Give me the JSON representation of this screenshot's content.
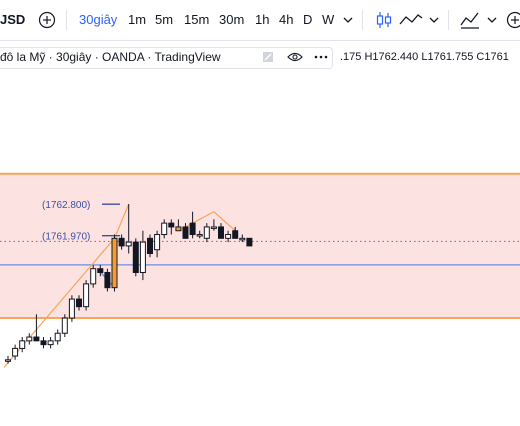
{
  "toolbar": {
    "symbol": "JSD",
    "intervals": [
      {
        "label": "30giây",
        "active": true
      },
      {
        "label": "1m"
      },
      {
        "label": "5m"
      },
      {
        "label": "15m"
      },
      {
        "label": "30m"
      },
      {
        "label": "1h"
      },
      {
        "label": "4h"
      },
      {
        "label": "D"
      },
      {
        "label": "W"
      }
    ],
    "icons": {
      "add": "plus-circle-icon",
      "interval_menu": "chevron-down-icon",
      "candles": "candlestick-icon",
      "line": "line-chart-icon",
      "indicators": "indicators-icon"
    }
  },
  "legend": {
    "title": "đô la Mỹ · 30giây · OANDA · TradingView",
    "ohlc": ".175 H1762.440 L1761.755 C1761"
  },
  "chart_data": {
    "type": "candlestick",
    "colors": {
      "up": "#ffffff",
      "down": "#131722",
      "zone_fill": "#fde2e2",
      "zone_border": "#f5a65b",
      "line": "#f5a65b",
      "blue_line": "#6b8ce6",
      "dotted_line": "#d64545",
      "label": "#3a4fa8"
    },
    "zone": {
      "top": 1763.6,
      "bottom": 1759.8
    },
    "horizontal_level": 1761.2,
    "current_price_level": 1761.82,
    "annotations": [
      {
        "text": "(1762.800)",
        "price": 1762.8
      },
      {
        "text": "(1761.970)",
        "price": 1761.97
      }
    ],
    "candles": [
      {
        "o": 1758.7,
        "h": 1758.8,
        "l": 1758.6,
        "c": 1758.7
      },
      {
        "o": 1758.8,
        "h": 1759.1,
        "l": 1758.7,
        "c": 1759.0
      },
      {
        "o": 1759.0,
        "h": 1759.3,
        "l": 1758.9,
        "c": 1759.2
      },
      {
        "o": 1759.2,
        "h": 1759.4,
        "l": 1759.1,
        "c": 1759.3
      },
      {
        "o": 1759.3,
        "h": 1759.9,
        "l": 1759.2,
        "c": 1759.2
      },
      {
        "o": 1759.2,
        "h": 1759.3,
        "l": 1759.0,
        "c": 1759.1
      },
      {
        "o": 1759.1,
        "h": 1759.3,
        "l": 1759.0,
        "c": 1759.2
      },
      {
        "o": 1759.2,
        "h": 1759.5,
        "l": 1759.1,
        "c": 1759.4
      },
      {
        "o": 1759.4,
        "h": 1759.9,
        "l": 1759.3,
        "c": 1759.8
      },
      {
        "o": 1759.8,
        "h": 1760.4,
        "l": 1759.7,
        "c": 1760.3
      },
      {
        "o": 1760.3,
        "h": 1760.4,
        "l": 1760.0,
        "c": 1760.1
      },
      {
        "o": 1760.1,
        "h": 1760.8,
        "l": 1760.0,
        "c": 1760.7
      },
      {
        "o": 1760.7,
        "h": 1761.2,
        "l": 1760.6,
        "c": 1761.1
      },
      {
        "o": 1761.1,
        "h": 1761.2,
        "l": 1760.9,
        "c": 1761.0
      },
      {
        "o": 1761.0,
        "h": 1761.1,
        "l": 1760.5,
        "c": 1760.6
      },
      {
        "o": 1760.6,
        "h": 1762.0,
        "l": 1760.5,
        "c": 1761.9
      },
      {
        "o": 1761.9,
        "h": 1762.0,
        "l": 1761.6,
        "c": 1761.7
      },
      {
        "o": 1761.7,
        "h": 1762.8,
        "l": 1761.5,
        "c": 1761.8
      },
      {
        "o": 1761.8,
        "h": 1761.9,
        "l": 1760.9,
        "c": 1761.0
      },
      {
        "o": 1761.0,
        "h": 1762.1,
        "l": 1760.8,
        "c": 1761.8
      },
      {
        "o": 1761.9,
        "h": 1762.0,
        "l": 1761.4,
        "c": 1761.5
      },
      {
        "o": 1761.6,
        "h": 1762.1,
        "l": 1761.4,
        "c": 1762.0
      },
      {
        "o": 1762.0,
        "h": 1762.4,
        "l": 1761.9,
        "c": 1762.3
      },
      {
        "o": 1762.3,
        "h": 1762.4,
        "l": 1762.0,
        "c": 1762.2
      },
      {
        "o": 1762.2,
        "h": 1762.4,
        "l": 1762.1,
        "c": 1762.1
      },
      {
        "o": 1762.2,
        "h": 1762.3,
        "l": 1761.9,
        "c": 1761.9
      },
      {
        "o": 1762.3,
        "h": 1762.6,
        "l": 1761.9,
        "c": 1762.0
      },
      {
        "o": 1762.0,
        "h": 1762.1,
        "l": 1761.9,
        "c": 1762.0
      },
      {
        "o": 1761.9,
        "h": 1762.3,
        "l": 1761.8,
        "c": 1762.2
      },
      {
        "o": 1762.2,
        "h": 1762.4,
        "l": 1762.1,
        "c": 1762.2
      },
      {
        "o": 1762.2,
        "h": 1762.3,
        "l": 1761.9,
        "c": 1761.9
      },
      {
        "o": 1761.9,
        "h": 1762.1,
        "l": 1761.8,
        "c": 1762.0
      },
      {
        "o": 1762.1,
        "h": 1762.2,
        "l": 1761.9,
        "c": 1761.9
      },
      {
        "o": 1761.9,
        "h": 1762.0,
        "l": 1761.8,
        "c": 1761.9
      },
      {
        "o": 1761.9,
        "h": 1761.9,
        "l": 1761.7,
        "c": 1761.7
      }
    ]
  }
}
